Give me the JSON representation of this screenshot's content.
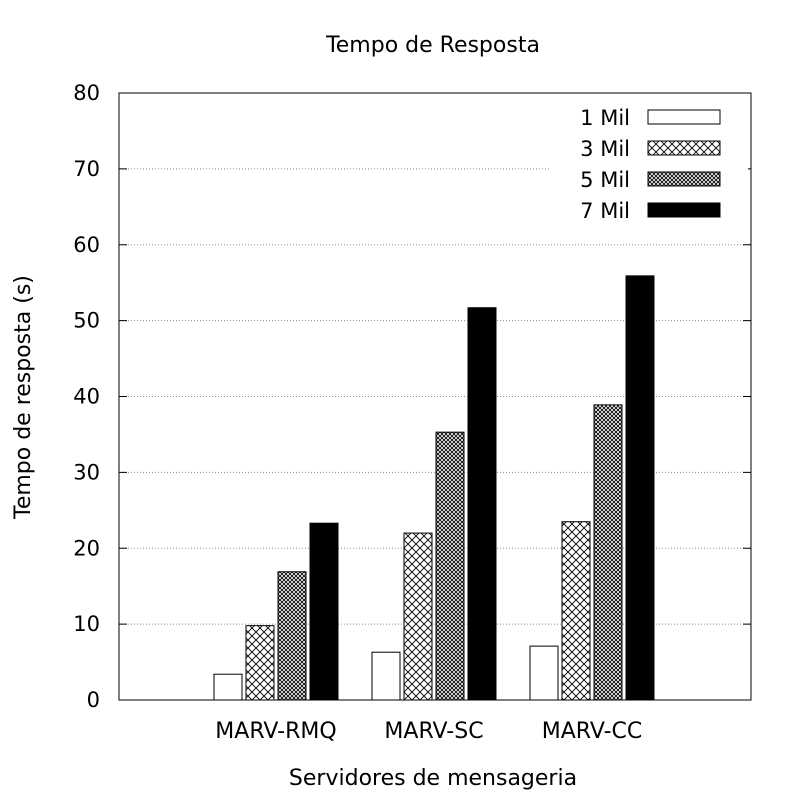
{
  "chart_data": {
    "type": "bar",
    "title": "Tempo de Resposta",
    "xlabel": "Servidores de mensageria",
    "ylabel": "Tempo de resposta (s)",
    "ylim": [
      0,
      80
    ],
    "yticks": [
      0,
      10,
      20,
      30,
      40,
      50,
      60,
      70,
      80
    ],
    "grid": "horizontal dotted",
    "legend_position": "top-right",
    "categories": [
      "MARV-RMQ",
      "MARV-SC",
      "MARV-CC"
    ],
    "series": [
      {
        "name": "1 Mil",
        "values": [
          3.4,
          6.3,
          7.1
        ],
        "fill": "white"
      },
      {
        "name": "3 Mil",
        "values": [
          9.8,
          22.0,
          23.5
        ],
        "fill": "crosshatch"
      },
      {
        "name": "5 Mil",
        "values": [
          16.9,
          35.3,
          38.9
        ],
        "fill": "dense-crosshatch"
      },
      {
        "name": "7 Mil",
        "values": [
          23.3,
          51.7,
          55.9
        ],
        "fill": "black"
      }
    ]
  }
}
